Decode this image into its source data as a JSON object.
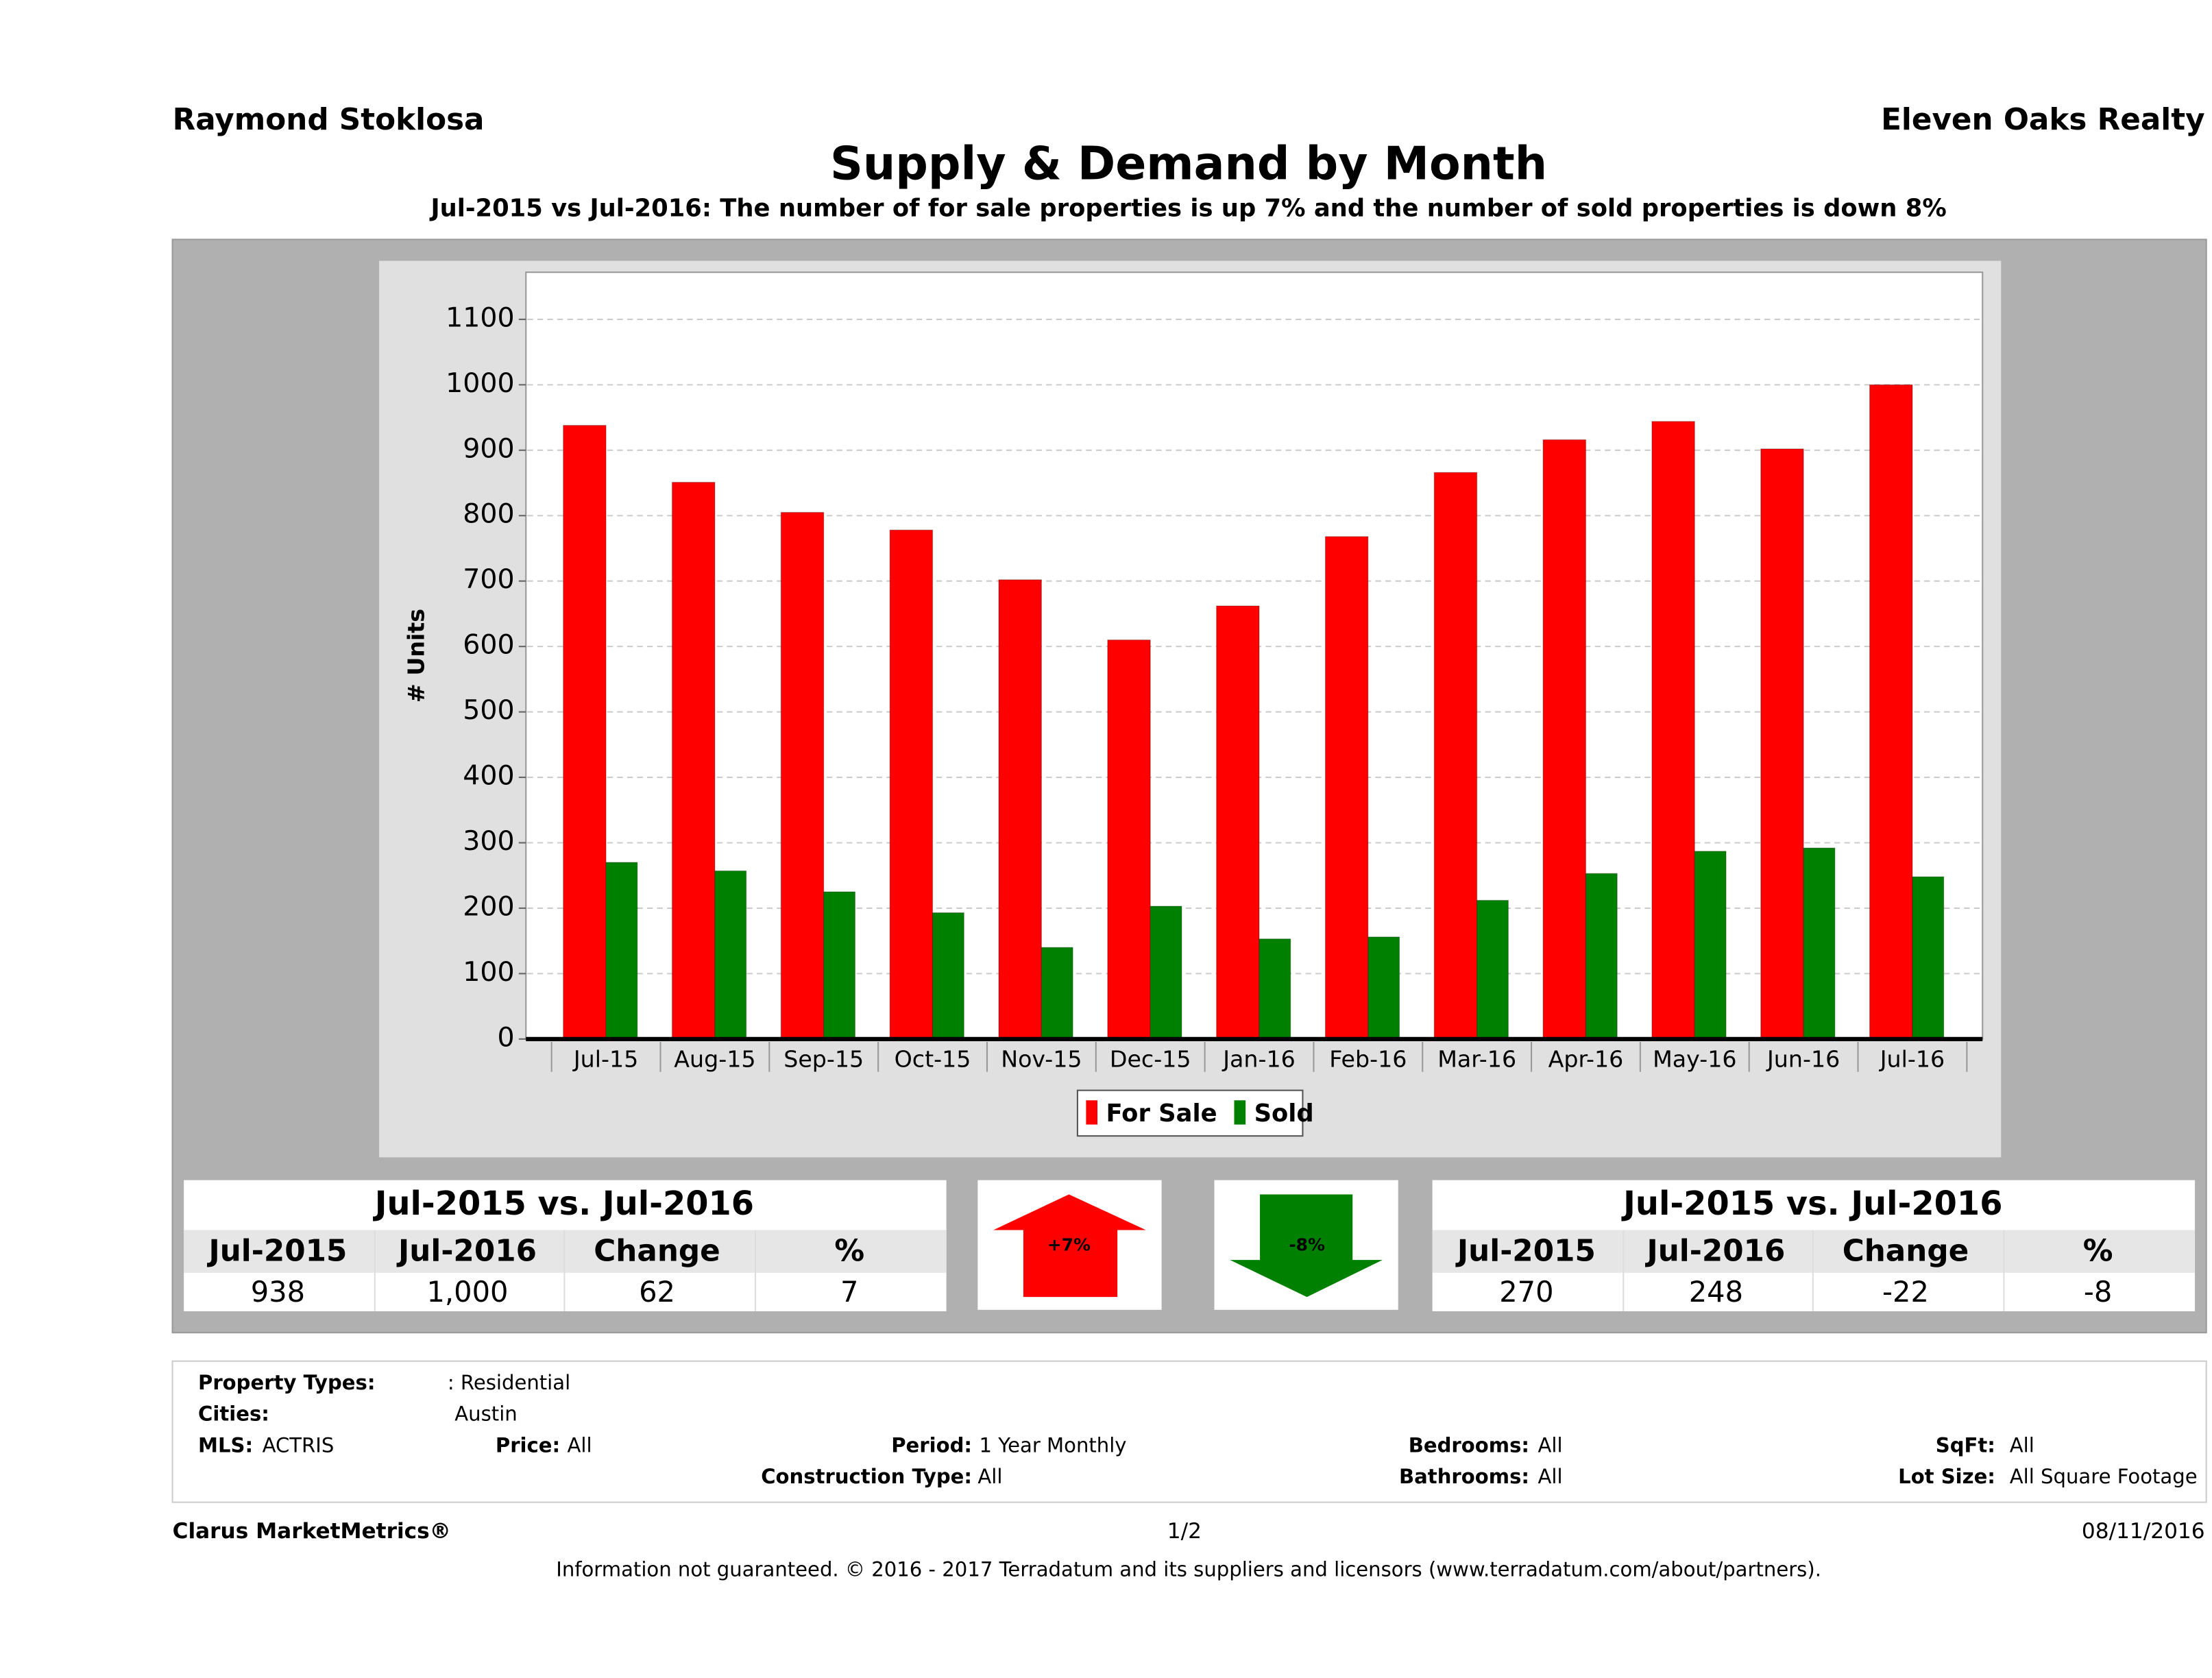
{
  "header": {
    "agent": "Raymond Stoklosa",
    "company": "Eleven Oaks Realty"
  },
  "chart_data": {
    "type": "bar",
    "title": "Supply & Demand by Month",
    "subtitle": "Jul-2015 vs Jul-2016: The number of for sale properties is up 7% and the number of sold properties is down 8%",
    "y_label": "# Units",
    "categories": [
      "Jul-15",
      "Aug-15",
      "Sep-15",
      "Oct-15",
      "Nov-15",
      "Dec-15",
      "Jan-16",
      "Feb-16",
      "Mar-16",
      "Apr-16",
      "May-16",
      "Jun-16",
      "Jul-16"
    ],
    "series": [
      {
        "name": "For Sale",
        "color": "#ff0000",
        "values": [
          938,
          851,
          805,
          778,
          702,
          610,
          662,
          768,
          866,
          916,
          944,
          902,
          1000
        ]
      },
      {
        "name": "Sold",
        "color": "#008000",
        "values": [
          270,
          257,
          225,
          193,
          140,
          203,
          153,
          156,
          212,
          253,
          287,
          292,
          248
        ]
      }
    ],
    "ylim": [
      0,
      1172
    ],
    "yticks": [
      0,
      100,
      200,
      300,
      400,
      500,
      600,
      700,
      800,
      900,
      1000,
      1100
    ],
    "grid": true
  },
  "summary": [
    {
      "title": "Jul-2015 vs. Jul-2016",
      "headers": [
        "Jul-2015",
        "Jul-2016",
        "Change",
        "%"
      ],
      "cells": [
        "938",
        "1,000",
        "62",
        "7"
      ]
    },
    {
      "title": "Jul-2015 vs. Jul-2016",
      "headers": [
        "Jul-2015",
        "Jul-2016",
        "Change",
        "%"
      ],
      "cells": [
        "270",
        "248",
        "-22",
        "-8"
      ]
    }
  ],
  "arrows": {
    "up": "+7%",
    "down": "-8%"
  },
  "filters": [
    {
      "label": "Property Types:",
      "value": ": Residential"
    },
    {
      "label": "Cities:",
      "value": "Austin"
    },
    {
      "label": "MLS:",
      "value": "ACTRIS"
    },
    {
      "label": "Price:",
      "value": "All"
    },
    {
      "label": "Period:",
      "value": "1 Year Monthly"
    },
    {
      "label": "Bedrooms:",
      "value": "All"
    },
    {
      "label": "SqFt:",
      "value": "All"
    },
    {
      "label": "Construction Type:",
      "value": "All"
    },
    {
      "label": "Bathrooms:",
      "value": "All"
    },
    {
      "label": "Lot Size:",
      "value": "All Square Footage"
    }
  ],
  "footer": {
    "brand": "Clarus MarketMetrics®",
    "page": "1/2",
    "date": "08/11/2016",
    "disclaimer": "Information not guaranteed. © 2016 - 2017 Terradatum and its suppliers and licensors (www.terradatum.com/about/partners)."
  }
}
